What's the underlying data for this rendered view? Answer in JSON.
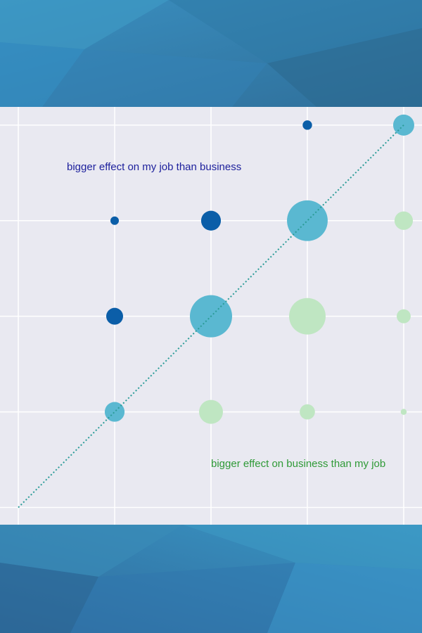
{
  "chart_data": {
    "type": "scatter",
    "annotations": [
      "bigger effect on my job than business",
      "bigger effect on business than my job"
    ],
    "annotation_colors": [
      "#1c1f9c",
      "#2f9a37"
    ],
    "x": [
      4,
      5,
      2,
      3,
      4,
      5,
      2,
      3,
      4,
      5,
      2,
      3,
      4,
      5
    ],
    "y": [
      5,
      5,
      4,
      4,
      4,
      4,
      3,
      3,
      3,
      3,
      2,
      2,
      2,
      2
    ],
    "sizes": [
      5,
      25,
      4,
      22,
      93,
      19,
      16,
      100,
      75,
      11,
      22,
      32,
      13,
      2
    ],
    "colors": [
      "#0b5ea8",
      "#5ab8d1",
      "#0b5ea8",
      "#0b5ea8",
      "#5ab8d1",
      "#bfe6c2",
      "#0b5ea8",
      "#5ab8d1",
      "#bfe6c2",
      "#bfe6c2",
      "#5ab8d1",
      "#bfe6c2",
      "#bfe6c2",
      "#bfe6c2"
    ],
    "reference_line": {
      "x": [
        1,
        5
      ],
      "y": [
        1,
        5
      ],
      "color": "#2b9c98"
    },
    "xlim": [
      0.81,
      5.19
    ],
    "ylim": [
      0.82,
      5.19
    ],
    "xticks": [
      1,
      2,
      3,
      4,
      5
    ],
    "yticks": [
      1,
      2,
      3,
      4,
      5
    ],
    "grid": true
  }
}
